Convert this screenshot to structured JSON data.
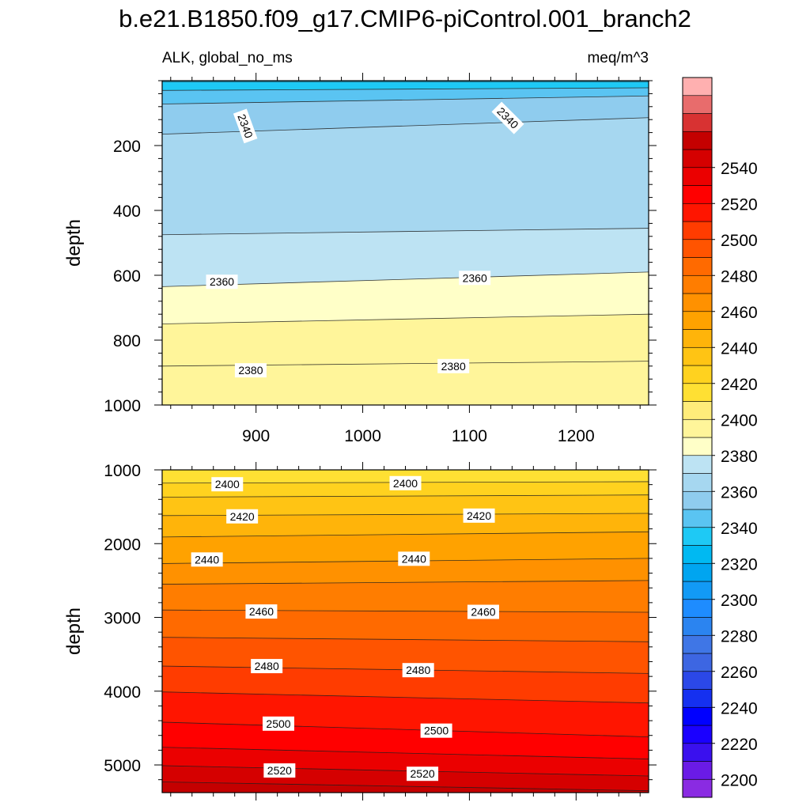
{
  "title": "b.e21.B1850.f09_g17.CMIP6-piControl.001_branch2",
  "left_string": "ALK, global_no_ms",
  "right_string": "meq/m^3",
  "chart_data": [
    {
      "type": "heatmap",
      "panel": "top",
      "ylabel": "depth",
      "xlim": [
        812,
        1268
      ],
      "ylim": [
        1000,
        0
      ],
      "x_ticks": [
        900,
        1000,
        1100,
        1200
      ],
      "y_ticks": [
        200,
        400,
        600,
        800,
        1000
      ],
      "contour_lines": [
        {
          "level": "",
          "x": [
            812,
            1268
          ],
          "y": [
            3,
            3
          ]
        },
        {
          "level": "",
          "x": [
            812,
            1268
          ],
          "y": [
            30,
            22
          ]
        },
        {
          "level": "",
          "x": [
            812,
            1268
          ],
          "y": [
            72,
            47
          ]
        },
        {
          "level": 2340,
          "x": [
            812,
            1268
          ],
          "y": [
            165,
            114
          ]
        },
        {
          "level": "",
          "x": [
            812,
            1268
          ],
          "y": [
            475,
            455
          ]
        },
        {
          "level": 2360,
          "x": [
            812,
            1268
          ],
          "y": [
            635,
            590
          ]
        },
        {
          "level": "",
          "x": [
            812,
            1268
          ],
          "y": [
            750,
            720
          ]
        },
        {
          "level": 2380,
          "x": [
            812,
            1268
          ],
          "y": [
            880,
            865
          ]
        }
      ],
      "contour_labels": [
        {
          "text": "2340",
          "x": 890,
          "y": 140,
          "rotate": 70
        },
        {
          "text": "2340",
          "x": 1136,
          "y": 115,
          "rotate": 45
        },
        {
          "text": "2360",
          "x": 868,
          "y": 620
        },
        {
          "text": "2360",
          "x": 1105,
          "y": 608
        },
        {
          "text": "2380",
          "x": 895,
          "y": 893
        },
        {
          "text": "2380",
          "x": 1085,
          "y": 880
        }
      ],
      "bands": [
        {
          "level": 2320,
          "fill_below": "#1ec9f5"
        },
        {
          "level": 2330,
          "fill_below": "#5ac4f2"
        },
        {
          "level": 2340,
          "fill_below": "#8fccee"
        },
        {
          "level": 2350,
          "fill_below": "#a6d7f0"
        },
        {
          "level": 2360,
          "fill_below": "#bde3f3"
        },
        {
          "level": 2370,
          "fill_below": "#ffffc8"
        },
        {
          "level": 2380,
          "fill_below": "#fff59a"
        }
      ]
    },
    {
      "type": "heatmap",
      "panel": "bottom",
      "ylabel": "depth",
      "xlim": [
        812,
        1268
      ],
      "ylim": [
        5375,
        1000
      ],
      "x_ticks": [
        900,
        1000,
        1100,
        1200
      ],
      "y_ticks": [
        1000,
        2000,
        3000,
        4000,
        5000
      ],
      "contour_lines": [
        {
          "level": "",
          "x": [
            812,
            1268
          ],
          "y": [
            1000,
            1000
          ]
        },
        {
          "level": 2400,
          "x": [
            812,
            1268
          ],
          "y": [
            1180,
            1160
          ]
        },
        {
          "level": "",
          "x": [
            812,
            1268
          ],
          "y": [
            1370,
            1340
          ]
        },
        {
          "level": 2420,
          "x": [
            812,
            1268
          ],
          "y": [
            1620,
            1590
          ]
        },
        {
          "level": "",
          "x": [
            812,
            1268
          ],
          "y": [
            1910,
            1840
          ]
        },
        {
          "level": 2440,
          "x": [
            812,
            1268
          ],
          "y": [
            2270,
            2200
          ]
        },
        {
          "level": "",
          "x": [
            812,
            1268
          ],
          "y": [
            2550,
            2500
          ]
        },
        {
          "level": 2460,
          "x": [
            812,
            1268
          ],
          "y": [
            2900,
            2930
          ]
        },
        {
          "level": "",
          "x": [
            812,
            1268
          ],
          "y": [
            3270,
            3330
          ]
        },
        {
          "level": 2480,
          "x": [
            812,
            1268
          ],
          "y": [
            3660,
            3760
          ]
        },
        {
          "level": "",
          "x": [
            812,
            1268
          ],
          "y": [
            4010,
            4160
          ]
        },
        {
          "level": 2500,
          "x": [
            812,
            1268
          ],
          "y": [
            4420,
            4620
          ]
        },
        {
          "level": "",
          "x": [
            812,
            1268
          ],
          "y": [
            4760,
            4920
          ]
        },
        {
          "level": 2520,
          "x": [
            812,
            1268
          ],
          "y": [
            5010,
            5150
          ]
        },
        {
          "level": "",
          "x": [
            812,
            1268
          ],
          "y": [
            5230,
            5350
          ]
        }
      ],
      "contour_labels": [
        {
          "text": "2400",
          "x": 873,
          "y": 1195
        },
        {
          "text": "2400",
          "x": 1040,
          "y": 1180
        },
        {
          "text": "2420",
          "x": 887,
          "y": 1630
        },
        {
          "text": "2420",
          "x": 1109,
          "y": 1620
        },
        {
          "text": "2440",
          "x": 854,
          "y": 2215
        },
        {
          "text": "2440",
          "x": 1048,
          "y": 2205
        },
        {
          "text": "2460",
          "x": 905,
          "y": 2920
        },
        {
          "text": "2460",
          "x": 1113,
          "y": 2925
        },
        {
          "text": "2480",
          "x": 910,
          "y": 3660
        },
        {
          "text": "2480",
          "x": 1052,
          "y": 3715
        },
        {
          "text": "2500",
          "x": 921,
          "y": 4440
        },
        {
          "text": "2500",
          "x": 1069,
          "y": 4535
        },
        {
          "text": "2520",
          "x": 922,
          "y": 5075
        },
        {
          "text": "2520",
          "x": 1056,
          "y": 5120
        }
      ],
      "bands": [
        {
          "level": 2390,
          "fill_below": "#ffe033"
        },
        {
          "level": 2400,
          "fill_below": "#ffd21f"
        },
        {
          "level": 2410,
          "fill_below": "#ffc414"
        },
        {
          "level": 2420,
          "fill_below": "#ffb40a"
        },
        {
          "level": 2430,
          "fill_below": "#ffa200"
        },
        {
          "level": 2440,
          "fill_below": "#ff9100"
        },
        {
          "level": 2450,
          "fill_below": "#ff7d00"
        },
        {
          "level": 2460,
          "fill_below": "#ff6a00"
        },
        {
          "level": 2470,
          "fill_below": "#ff5400"
        },
        {
          "level": 2480,
          "fill_below": "#ff3c00"
        },
        {
          "level": 2490,
          "fill_below": "#ff1500"
        },
        {
          "level": 2500,
          "fill_below": "#ff0000"
        },
        {
          "level": 2510,
          "fill_below": "#eb0000"
        },
        {
          "level": 2520,
          "fill_below": "#d50000"
        },
        {
          "level": 2530,
          "fill_below": "#c40000"
        },
        {
          "level": 2540,
          "fill_below": "#d83232"
        }
      ]
    }
  ],
  "colorbar": {
    "labels": [
      "2200",
      "2220",
      "2240",
      "2260",
      "2280",
      "2300",
      "2320",
      "2340",
      "2360",
      "2380",
      "2400",
      "2420",
      "2440",
      "2460",
      "2480",
      "2500",
      "2520",
      "2540"
    ],
    "colors": [
      "#8a2be2",
      "#6a1be6",
      "#3a10ee",
      "#1a00ff",
      "#0000ff",
      "#1530f0",
      "#2b48e8",
      "#3d66e2",
      "#3f76e6",
      "#2b84f0",
      "#1e8cff",
      "#129af5",
      "#00a5f0",
      "#00b9f2",
      "#1ec9f5",
      "#5ac4f2",
      "#8fccee",
      "#a6d7f0",
      "#bde3f3",
      "#ffffc8",
      "#fff59a",
      "#ffec7a",
      "#ffe033",
      "#ffd21f",
      "#ffc414",
      "#ffb40a",
      "#ffa200",
      "#ff9100",
      "#ff7d00",
      "#ff6a00",
      "#ff5400",
      "#ff3c00",
      "#ff1500",
      "#ff0000",
      "#eb0000",
      "#d50000",
      "#c40000",
      "#d83232",
      "#e86c6c",
      "#ffb0b0"
    ]
  }
}
